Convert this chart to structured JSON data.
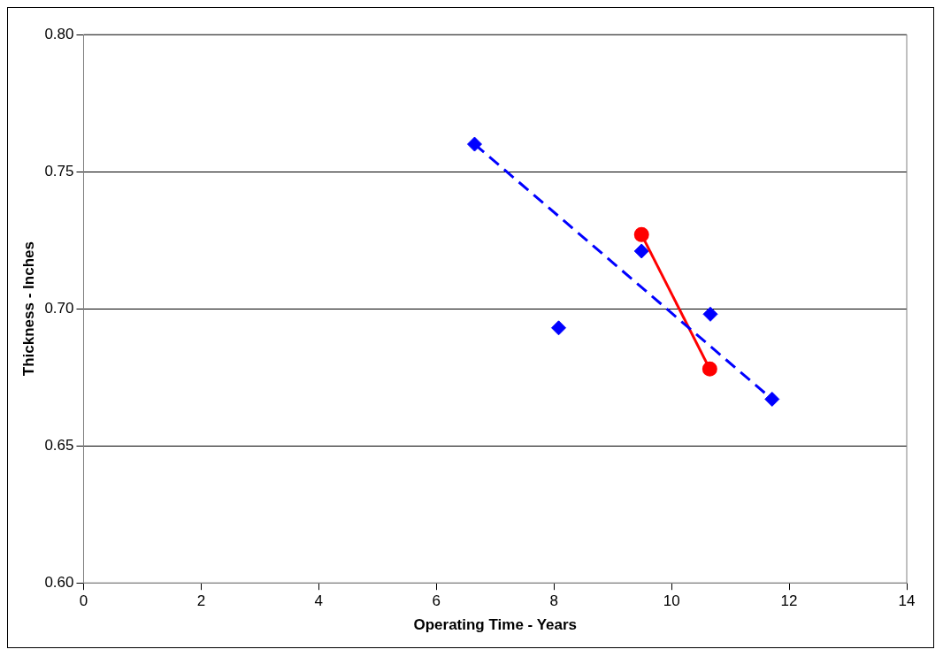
{
  "chart_data": {
    "type": "scatter",
    "xlabel": "Operating Time - Years",
    "ylabel": "Thickness - Inches",
    "xlim": [
      0,
      14
    ],
    "xticks": [
      0,
      2,
      4,
      6,
      8,
      10,
      12,
      14
    ],
    "ylim": [
      0.6,
      0.8
    ],
    "yticks": [
      {
        "value": 0.6,
        "label": "0.60"
      },
      {
        "value": 0.65,
        "label": "0.65"
      },
      {
        "value": 0.7,
        "label": "0.70"
      },
      {
        "value": 0.75,
        "label": "0.75"
      },
      {
        "value": 0.8,
        "label": "0.80"
      }
    ],
    "grid": "y",
    "legend": false,
    "series": [
      {
        "type": "scatter",
        "color": "#0000ff",
        "marker": "diamond",
        "x": [
          6.65,
          8.08,
          9.49,
          10.66,
          11.71
        ],
        "values": [
          0.76,
          0.693,
          0.721,
          0.698,
          0.667
        ]
      },
      {
        "type": "line",
        "color": "#0000ff",
        "marker": "none",
        "line_style": "dashed",
        "x": [
          6.65,
          11.71
        ],
        "values": [
          0.76,
          0.667
        ]
      },
      {
        "type": "line",
        "color": "#ff0000",
        "marker": "circle",
        "line_style": "solid",
        "x": [
          9.49,
          10.65
        ],
        "values": [
          0.727,
          0.678
        ]
      }
    ]
  }
}
